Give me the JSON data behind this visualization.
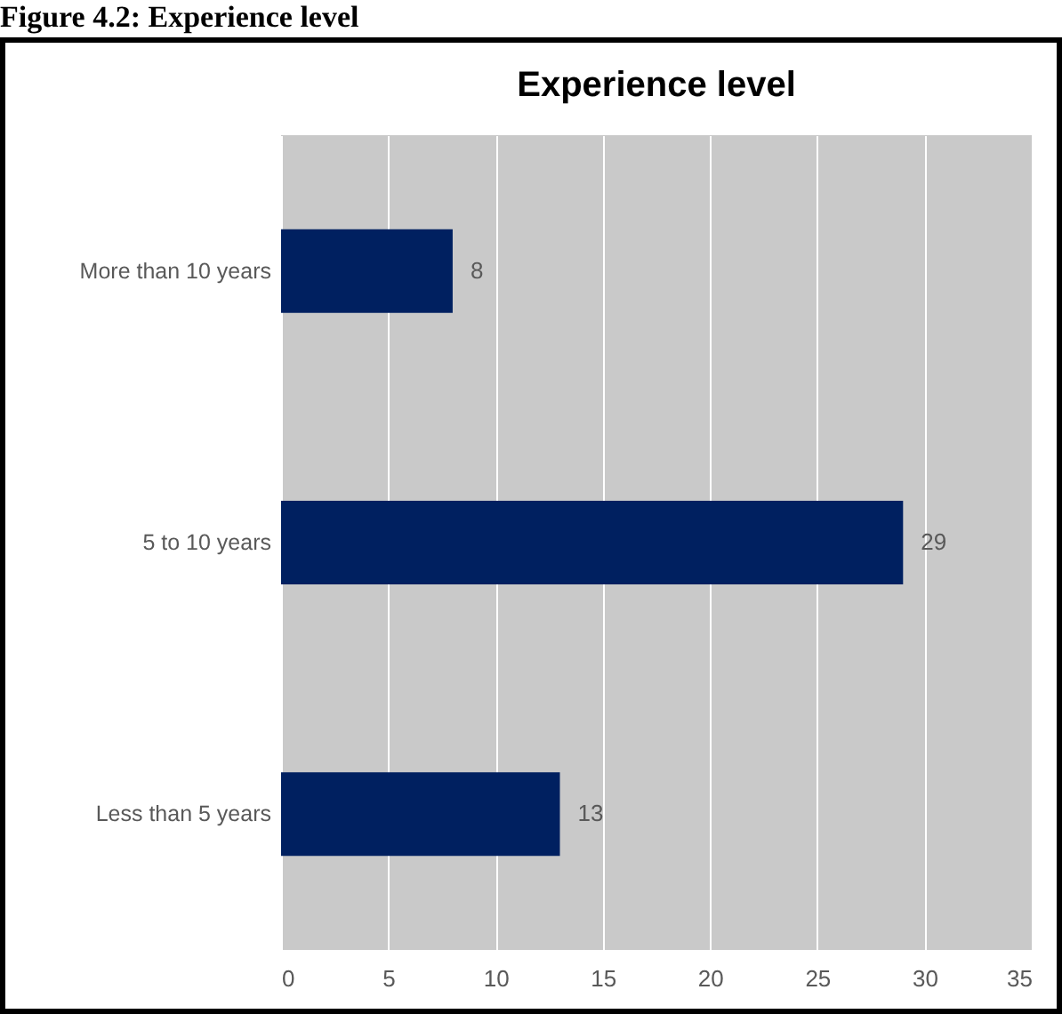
{
  "chart_data": {
    "type": "bar",
    "orientation": "horizontal",
    "title": "Experience level",
    "annotations": [
      "Figure 4.2: Experience level"
    ],
    "categories": [
      "More than 10 years",
      "5 to 10 years",
      "Less than 5 years"
    ],
    "values": [
      8,
      29,
      13
    ],
    "color": "#002060",
    "xlim": [
      0,
      35
    ],
    "xticks": [
      0,
      5,
      10,
      15,
      20,
      25,
      30,
      35
    ],
    "grid": "x",
    "data_labels": true
  }
}
